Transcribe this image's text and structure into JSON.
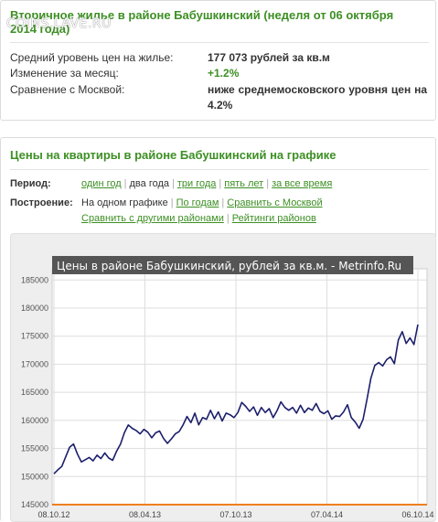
{
  "summary": {
    "title": "Вторичное жилье в районе Бабушкинский (неделя от 06 октября 2014 года)",
    "watermark": "COINS.LAVE.RU",
    "rows": [
      {
        "label": "Средний уровень цен на жилье:",
        "value": "177 073 рублей за кв.м"
      },
      {
        "label": "Изменение за месяц:",
        "value": "+1.2%"
      },
      {
        "label": "Сравнение с Москвой:",
        "value": "ниже среднемосковского уровня цен на 4.2%"
      }
    ]
  },
  "chart_section": {
    "title": "Цены на квартиры в районе Бабушкинский на графике",
    "period_label": "Период:",
    "period_options": [
      "один год",
      "два года",
      "три года",
      "пять лет",
      "за все время"
    ],
    "period_selected": "два года",
    "build_label": "Построение:",
    "build_options_row1": [
      "На одном графике",
      "По годам",
      "Сравнить с Москвой"
    ],
    "build_selected": "На одном графике",
    "build_options_row2": [
      "Сравнить с другими районами",
      "Рейтинги районов"
    ]
  },
  "colors": {
    "accent": "#3d8f24",
    "line": "#1b1f6b",
    "baseline": "#f07f1d",
    "title_bar": "#555555"
  },
  "chart_data": {
    "type": "line",
    "title": "Цены в районе Бабушкинский, рублей за кв.м. - Metrinfo.Ru",
    "ylim": [
      145000,
      187000
    ],
    "yticks": [
      145000,
      150000,
      155000,
      160000,
      165000,
      170000,
      175000,
      180000,
      185000
    ],
    "ytick_labels": [
      "145000",
      "150000",
      "155000",
      "160000",
      "165000",
      "170000",
      "175000",
      "180000",
      "185000"
    ],
    "xtick_labels": [
      "08.10.12",
      "08.04.13",
      "07.10.13",
      "07.04.14",
      "06.10.14"
    ],
    "grid": true,
    "series": [
      {
        "values": [
          150500,
          151200,
          151800,
          153500,
          155200,
          155800,
          154000,
          152600,
          153000,
          153400,
          152800,
          153800,
          153200,
          154200,
          153300,
          152900,
          154500,
          155800,
          157800,
          159200,
          158600,
          158200,
          157600,
          158400,
          157900,
          156900,
          157800,
          158100,
          156800,
          155900,
          156700,
          157600,
          158000,
          159200,
          160700,
          159600,
          161300,
          159200,
          160500,
          160200,
          161800,
          160300,
          161500,
          159900,
          161300,
          161000,
          160500,
          161400,
          163200,
          162500,
          161600,
          162400,
          160900,
          162300,
          161400,
          162100,
          160500,
          161700,
          163300,
          162300,
          161800,
          162300,
          161300,
          162700,
          161400,
          162200,
          161800,
          163000,
          161600,
          161200,
          161700,
          160200,
          160800,
          160700,
          161500,
          162800,
          160500,
          159700,
          158600,
          160200,
          163800,
          167500,
          169800,
          170300,
          169700,
          170800,
          171300,
          170100,
          174300,
          175800,
          173700,
          174700,
          173500,
          177073
        ]
      },
      {
        "values": [
          145000,
          145000
        ]
      }
    ]
  }
}
